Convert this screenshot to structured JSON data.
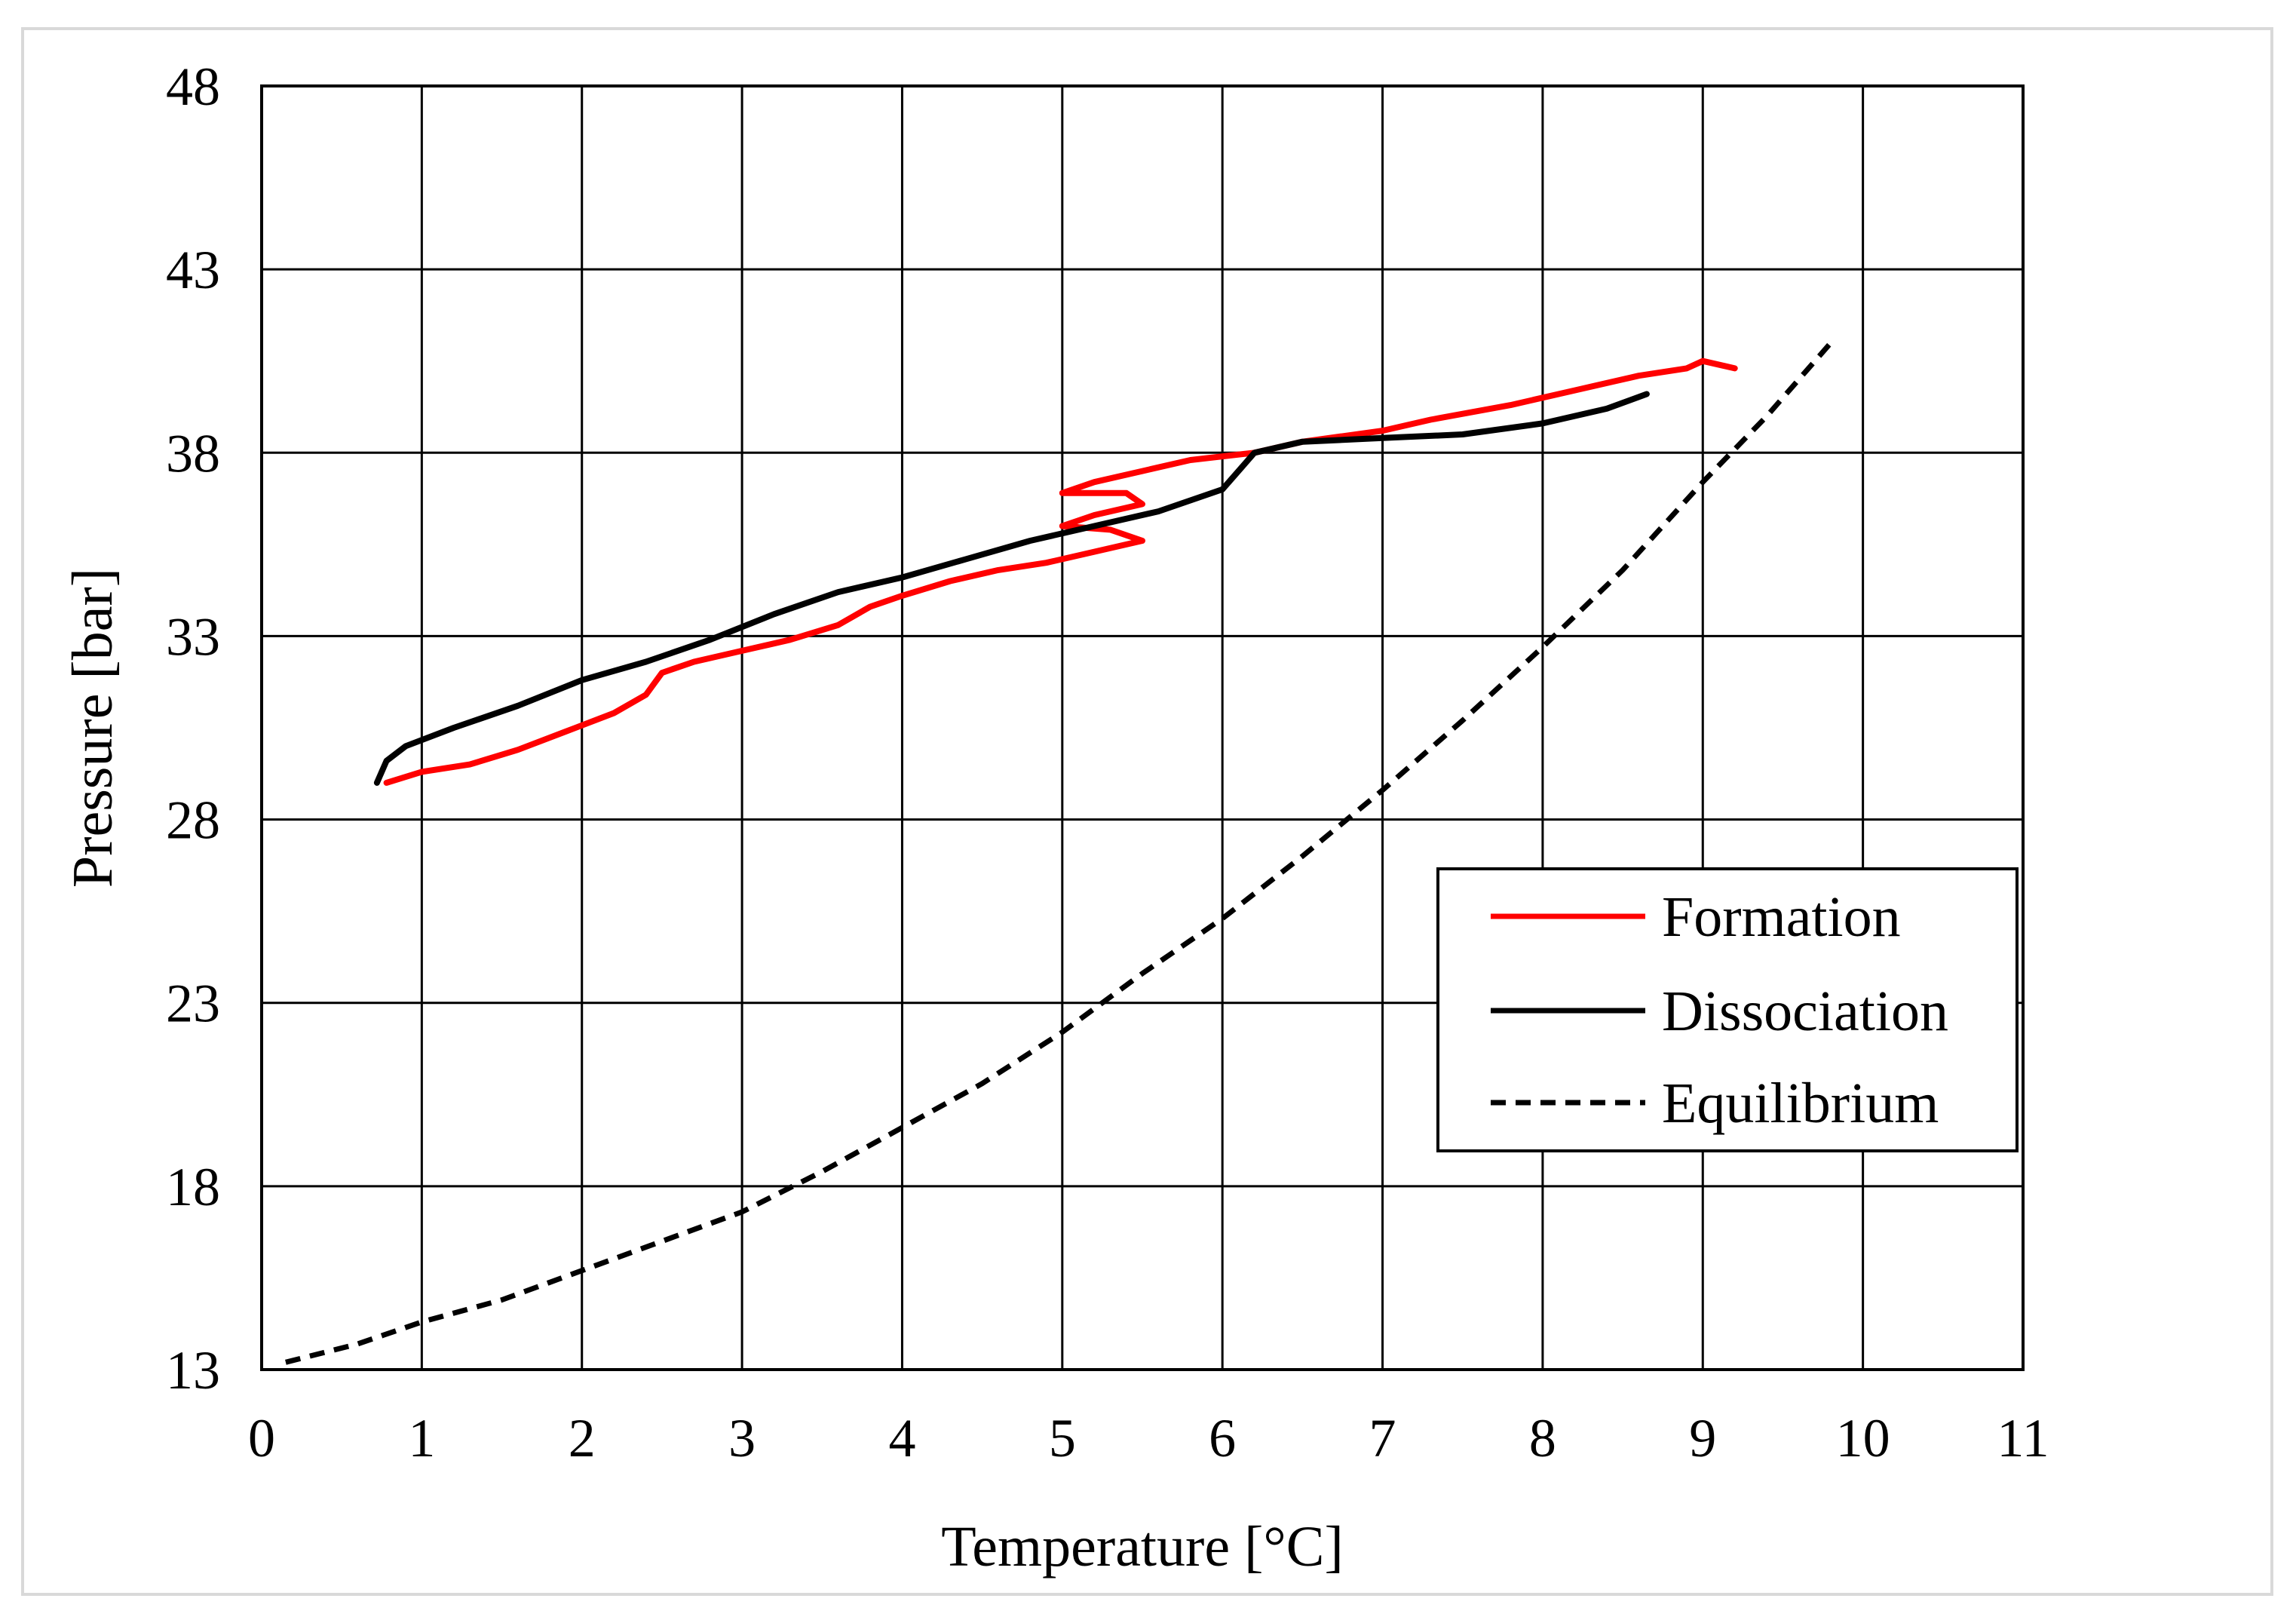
{
  "chart_data": {
    "type": "line",
    "title": "",
    "xlabel": "Temperature [°C]",
    "ylabel": "Pressure [bar]",
    "xlim": [
      0,
      11
    ],
    "ylim": [
      13,
      48
    ],
    "xticks": [
      0,
      1,
      2,
      3,
      4,
      5,
      6,
      7,
      8,
      9,
      10,
      11
    ],
    "yticks": [
      13,
      18,
      23,
      28,
      33,
      38,
      43,
      48
    ],
    "xtick_labels": [
      "0",
      "1",
      "2",
      "3",
      "4",
      "5",
      "6",
      "7",
      "8",
      "9",
      "10",
      "11"
    ],
    "ytick_labels": [
      "13",
      "18",
      "23",
      "28",
      "33",
      "38",
      "43",
      "48"
    ],
    "grid": true,
    "legend_position": "lower-right",
    "series": [
      {
        "name": "Formation",
        "color": "#ff0000",
        "style": "solid",
        "points": [
          [
            0.78,
            29.0
          ],
          [
            1.0,
            29.3
          ],
          [
            1.3,
            29.5
          ],
          [
            1.6,
            29.9
          ],
          [
            1.9,
            30.4
          ],
          [
            2.2,
            30.9
          ],
          [
            2.4,
            31.4
          ],
          [
            2.5,
            32.0
          ],
          [
            2.7,
            32.3
          ],
          [
            3.0,
            32.6
          ],
          [
            3.3,
            32.9
          ],
          [
            3.6,
            33.3
          ],
          [
            3.8,
            33.8
          ],
          [
            4.0,
            34.1
          ],
          [
            4.3,
            34.5
          ],
          [
            4.6,
            34.8
          ],
          [
            4.9,
            35.0
          ],
          [
            5.2,
            35.3
          ],
          [
            5.5,
            35.6
          ],
          [
            5.3,
            35.9
          ],
          [
            5.0,
            36.0
          ],
          [
            5.2,
            36.3
          ],
          [
            5.5,
            36.6
          ],
          [
            5.4,
            36.9
          ],
          [
            5.0,
            36.9
          ],
          [
            5.2,
            37.2
          ],
          [
            5.5,
            37.5
          ],
          [
            5.8,
            37.8
          ],
          [
            6.2,
            38.0
          ],
          [
            6.5,
            38.3
          ],
          [
            7.0,
            38.6
          ],
          [
            7.3,
            38.9
          ],
          [
            7.8,
            39.3
          ],
          [
            8.2,
            39.7
          ],
          [
            8.6,
            40.1
          ],
          [
            8.9,
            40.3
          ],
          [
            9.0,
            40.5
          ],
          [
            9.2,
            40.3
          ]
        ]
      },
      {
        "name": "Dissociation",
        "color": "#000000",
        "style": "solid",
        "points": [
          [
            0.72,
            29.0
          ],
          [
            0.78,
            29.6
          ],
          [
            0.9,
            30.0
          ],
          [
            1.2,
            30.5
          ],
          [
            1.6,
            31.1
          ],
          [
            2.0,
            31.8
          ],
          [
            2.4,
            32.3
          ],
          [
            2.8,
            32.9
          ],
          [
            3.2,
            33.6
          ],
          [
            3.6,
            34.2
          ],
          [
            4.0,
            34.6
          ],
          [
            4.4,
            35.1
          ],
          [
            4.8,
            35.6
          ],
          [
            5.2,
            36.0
          ],
          [
            5.6,
            36.4
          ],
          [
            6.0,
            37.0
          ],
          [
            6.2,
            38.0
          ],
          [
            6.5,
            38.3
          ],
          [
            7.0,
            38.4
          ],
          [
            7.5,
            38.5
          ],
          [
            8.0,
            38.8
          ],
          [
            8.4,
            39.2
          ],
          [
            8.65,
            39.6
          ]
        ]
      },
      {
        "name": "Equilibrium",
        "color": "#000000",
        "style": "dashed",
        "points": [
          [
            0.15,
            13.2
          ],
          [
            0.6,
            13.7
          ],
          [
            1.0,
            14.3
          ],
          [
            1.5,
            14.9
          ],
          [
            2.0,
            15.7
          ],
          [
            2.5,
            16.5
          ],
          [
            3.0,
            17.3
          ],
          [
            3.5,
            18.4
          ],
          [
            4.0,
            19.6
          ],
          [
            4.5,
            20.8
          ],
          [
            5.0,
            22.2
          ],
          [
            5.5,
            23.8
          ],
          [
            6.0,
            25.3
          ],
          [
            6.5,
            27.0
          ],
          [
            7.0,
            28.8
          ],
          [
            7.5,
            30.7
          ],
          [
            8.0,
            32.7
          ],
          [
            8.5,
            34.8
          ],
          [
            9.0,
            37.2
          ],
          [
            9.4,
            39.0
          ],
          [
            9.8,
            41.0
          ]
        ]
      }
    ]
  }
}
